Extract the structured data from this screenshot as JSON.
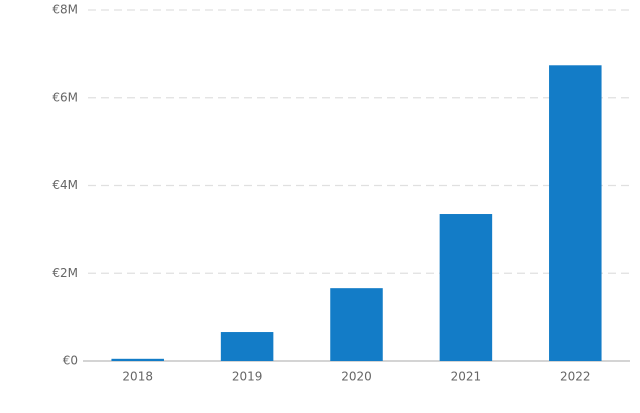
{
  "chart_data": {
    "type": "bar",
    "categories": [
      "2018",
      "2019",
      "2020",
      "2021",
      "2022"
    ],
    "values": [
      50000,
      660000,
      1660000,
      3350000,
      6740000
    ],
    "color": "#137cc7",
    "ylim": [
      0,
      8000000
    ],
    "yticks": [
      {
        "value": 0,
        "label": "€0"
      },
      {
        "value": 2000000,
        "label": "€2M"
      },
      {
        "value": 4000000,
        "label": "€4M"
      },
      {
        "value": 6000000,
        "label": "€6M"
      },
      {
        "value": 8000000,
        "label": "€8M"
      }
    ],
    "grid": true
  }
}
